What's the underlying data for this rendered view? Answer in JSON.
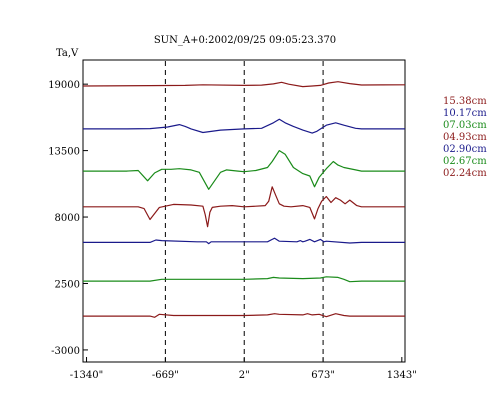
{
  "chart_data": {
    "type": "line",
    "title": "SUN_A+0:2002/09/25 09:05:23.370",
    "ylabel": "Ta,V",
    "xlabel": "",
    "xlim": [
      -1370,
      1370
    ],
    "ylim": [
      -4000,
      21000
    ],
    "x_ticks": [
      {
        "value": -1340,
        "label": "-1340\""
      },
      {
        "value": -669,
        "label": "-669\""
      },
      {
        "value": 2,
        "label": "2\""
      },
      {
        "value": 673,
        "label": "673\""
      },
      {
        "value": 1343,
        "label": "1343\""
      }
    ],
    "y_ticks": [
      {
        "value": 19000,
        "label": "19000"
      },
      {
        "value": 13500,
        "label": "13500"
      },
      {
        "value": 8000,
        "label": "8000"
      },
      {
        "value": 2500,
        "label": "2500"
      },
      {
        "value": -3000,
        "label": "-3000"
      }
    ],
    "vertical_markers": [
      -669,
      2,
      673
    ],
    "series": [
      {
        "name": "15.38cm",
        "color": "#8b1a1a",
        "x": [
          -1370,
          -800,
          -500,
          -350,
          0,
          150,
          250,
          320,
          380,
          500,
          580,
          650,
          720,
          800,
          900,
          1000,
          1370
        ],
        "y": [
          18850,
          18880,
          18900,
          18950,
          18900,
          18920,
          19020,
          19150,
          19000,
          18800,
          18850,
          18900,
          19100,
          19200,
          19050,
          18930,
          18950
        ]
      },
      {
        "name": "10.17cm",
        "color": "#1a1a8b",
        "x": [
          -1370,
          -1000,
          -800,
          -650,
          -550,
          -500,
          -450,
          -350,
          -200,
          0,
          150,
          250,
          300,
          350,
          420,
          500,
          580,
          620,
          700,
          780,
          850,
          950,
          1000,
          1370
        ],
        "y": [
          15300,
          15300,
          15320,
          15450,
          15650,
          15500,
          15300,
          15000,
          15200,
          15300,
          15350,
          15800,
          16100,
          15800,
          15500,
          15200,
          14950,
          15100,
          15600,
          15800,
          15600,
          15350,
          15300,
          15300
        ]
      },
      {
        "name": "07.03cm",
        "color": "#1a8b1a",
        "x": [
          -1370,
          -1000,
          -900,
          -820,
          -760,
          -700,
          -620,
          -550,
          -450,
          -380,
          -300,
          -200,
          -150,
          -100,
          -50,
          0,
          100,
          200,
          240,
          300,
          350,
          420,
          500,
          560,
          600,
          640,
          700,
          760,
          800,
          850,
          950,
          1000,
          1370
        ],
        "y": [
          11800,
          11800,
          11850,
          11000,
          11650,
          11950,
          11950,
          12000,
          11900,
          11700,
          10300,
          11700,
          11900,
          11850,
          11800,
          11750,
          11850,
          12100,
          12600,
          13500,
          13200,
          12100,
          11600,
          11400,
          10500,
          11300,
          12000,
          12600,
          12300,
          12100,
          11900,
          11800,
          11800
        ]
      },
      {
        "name": "04.93cm",
        "color": "#8b1a1a",
        "x": [
          -1370,
          -1000,
          -900,
          -850,
          -800,
          -720,
          -600,
          -450,
          -350,
          -330,
          -310,
          -290,
          -270,
          -200,
          -100,
          0,
          100,
          180,
          210,
          240,
          270,
          300,
          340,
          400,
          500,
          560,
          600,
          630,
          660,
          700,
          740,
          780,
          820,
          860,
          900,
          960,
          1000,
          1370
        ],
        "y": [
          8850,
          8850,
          8850,
          8700,
          7800,
          8800,
          9050,
          9000,
          8900,
          8200,
          7200,
          8400,
          8800,
          8900,
          8950,
          8850,
          8900,
          8950,
          9300,
          10500,
          9800,
          9100,
          8900,
          8850,
          8950,
          8800,
          7850,
          8700,
          9300,
          9700,
          9200,
          9600,
          9400,
          9100,
          9400,
          8950,
          8850,
          8850
        ]
      },
      {
        "name": "02.90cm",
        "color": "#1a1a8b",
        "x": [
          -1370,
          -800,
          -750,
          -700,
          -400,
          -320,
          -300,
          -280,
          0,
          200,
          240,
          260,
          300,
          450,
          480,
          500,
          520,
          560,
          600,
          650,
          680,
          700,
          900,
          1000,
          1370
        ],
        "y": [
          5900,
          5900,
          6100,
          6050,
          5950,
          5950,
          5800,
          5950,
          5950,
          5950,
          6150,
          6250,
          6000,
          5950,
          6050,
          5950,
          6000,
          6150,
          5950,
          6150,
          5950,
          6000,
          5850,
          5900,
          5900
        ]
      },
      {
        "name": "02.67cm",
        "color": "#1a8b1a",
        "x": [
          -1370,
          -800,
          -700,
          -400,
          0,
          200,
          250,
          300,
          500,
          650,
          700,
          800,
          850,
          900,
          1000,
          1370
        ],
        "y": [
          2700,
          2700,
          2850,
          2850,
          2850,
          2900,
          3000,
          2950,
          2900,
          2950,
          3050,
          3000,
          2850,
          2650,
          2700,
          2700
        ]
      },
      {
        "name": "02.24cm",
        "color": "#8b1a1a",
        "x": [
          -1370,
          -800,
          -760,
          -720,
          -600,
          -300,
          0,
          200,
          260,
          300,
          500,
          540,
          580,
          640,
          700,
          780,
          850,
          900,
          1000,
          1370
        ],
        "y": [
          -200,
          -200,
          -300,
          -50,
          -150,
          -150,
          -150,
          -100,
          0,
          -50,
          -100,
          0,
          -100,
          -50,
          -250,
          0,
          -150,
          -200,
          -200,
          -200
        ]
      }
    ]
  }
}
